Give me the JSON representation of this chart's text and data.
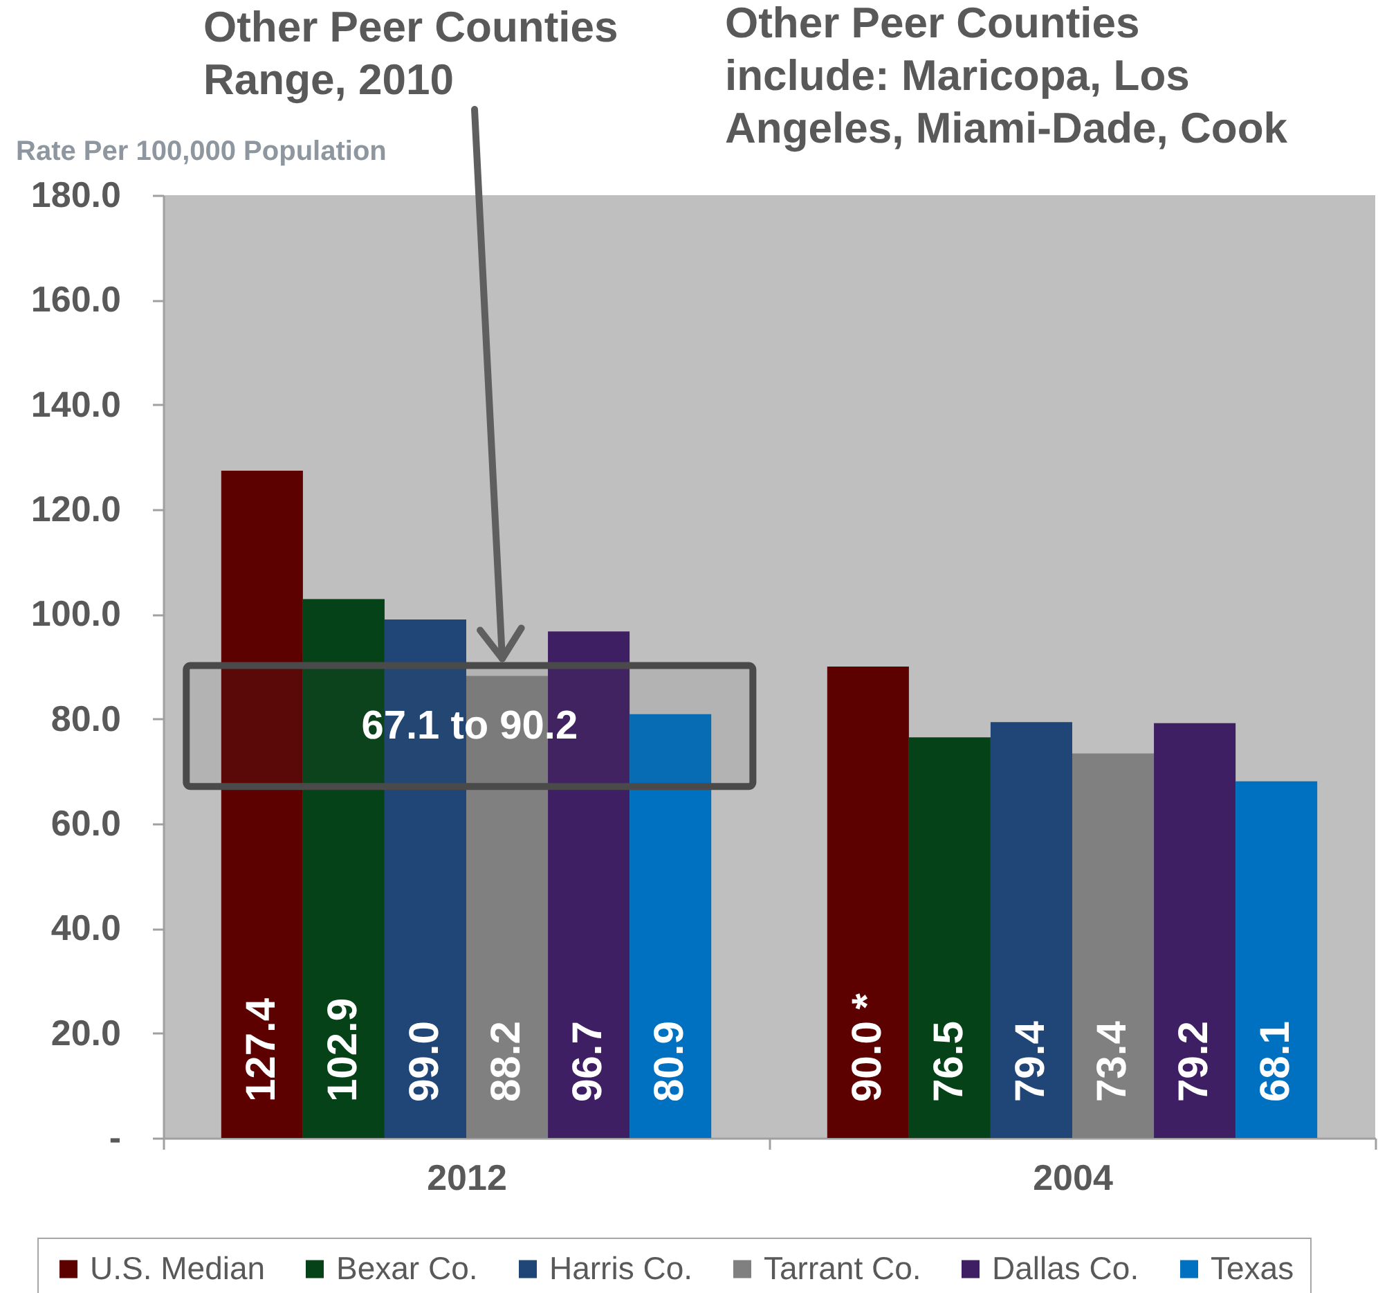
{
  "chart_data": {
    "type": "bar",
    "ylabel": "Rate Per 100,000 Population",
    "categories": [
      "2012",
      "2004"
    ],
    "series": [
      {
        "name": "U.S. Median",
        "color": "#5c0000",
        "values": [
          127.4,
          90.0
        ],
        "value_labels": [
          "127.4",
          "90.0 *"
        ]
      },
      {
        "name": "Bexar Co.",
        "color": "#054217",
        "values": [
          102.9,
          76.5
        ],
        "value_labels": [
          "102.9",
          "76.5"
        ]
      },
      {
        "name": "Harris Co.",
        "color": "#1f4677",
        "values": [
          99.0,
          79.4
        ],
        "value_labels": [
          "99.0",
          "79.4"
        ]
      },
      {
        "name": "Tarrant Co.",
        "color": "#808080",
        "values": [
          88.2,
          73.4
        ],
        "value_labels": [
          "88.2",
          "73.4"
        ]
      },
      {
        "name": "Dallas Co.",
        "color": "#3f1f63",
        "values": [
          96.7,
          79.2
        ],
        "value_labels": [
          "96.7",
          "79.2"
        ]
      },
      {
        "name": "Texas",
        "color": "#0070c0",
        "values": [
          80.9,
          68.1
        ],
        "value_labels": [
          "80.9",
          "68.1"
        ]
      }
    ],
    "ylim": [
      0,
      180
    ],
    "yticks": [
      {
        "value": 0,
        "label": "-"
      },
      {
        "value": 20,
        "label": "20.0"
      },
      {
        "value": 40,
        "label": "40.0"
      },
      {
        "value": 60,
        "label": "60.0"
      },
      {
        "value": 80,
        "label": "80.0"
      },
      {
        "value": 100,
        "label": "100.0"
      },
      {
        "value": 120,
        "label": "120.0"
      },
      {
        "value": 140,
        "label": "140.0"
      },
      {
        "value": 160,
        "label": "160.0"
      },
      {
        "value": 180,
        "label": "180.0"
      }
    ],
    "bands": [
      {
        "axis": "y",
        "from": 67.1,
        "to": 90.2,
        "label": "67.1 to 90.2",
        "color": "#4a4a4a"
      }
    ],
    "annotations": [
      "Other Peer Counties Range, 2010",
      "Other Peer Counties include: Maricopa, Los Angeles, Miami-Dade, Cook"
    ],
    "legend": "bottom"
  }
}
